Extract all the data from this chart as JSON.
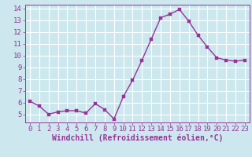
{
  "x": [
    0,
    1,
    2,
    3,
    4,
    5,
    6,
    7,
    8,
    9,
    10,
    11,
    12,
    13,
    14,
    15,
    16,
    17,
    18,
    19,
    20,
    21,
    22,
    23
  ],
  "y": [
    6.1,
    5.7,
    5.0,
    5.2,
    5.3,
    5.3,
    5.1,
    5.9,
    5.4,
    4.6,
    6.5,
    7.9,
    9.6,
    11.4,
    13.2,
    13.5,
    13.9,
    12.9,
    11.7,
    10.7,
    9.8,
    9.6,
    9.5,
    9.6
  ],
  "line_color": "#993399",
  "marker_color": "#993399",
  "bg_color": "#cce8ee",
  "grid_color": "#ffffff",
  "xlabel": "Windchill (Refroidissement éolien,°C)",
  "ylim": [
    4.3,
    14.3
  ],
  "xlim": [
    -0.5,
    23.5
  ],
  "xticks": [
    0,
    1,
    2,
    3,
    4,
    5,
    6,
    7,
    8,
    9,
    10,
    11,
    12,
    13,
    14,
    15,
    16,
    17,
    18,
    19,
    20,
    21,
    22,
    23
  ],
  "yticks": [
    5,
    6,
    7,
    8,
    9,
    10,
    11,
    12,
    13,
    14
  ],
  "xlabel_fontsize": 7.0,
  "tick_fontsize": 6.5,
  "line_width": 1.0,
  "marker_size": 2.5
}
